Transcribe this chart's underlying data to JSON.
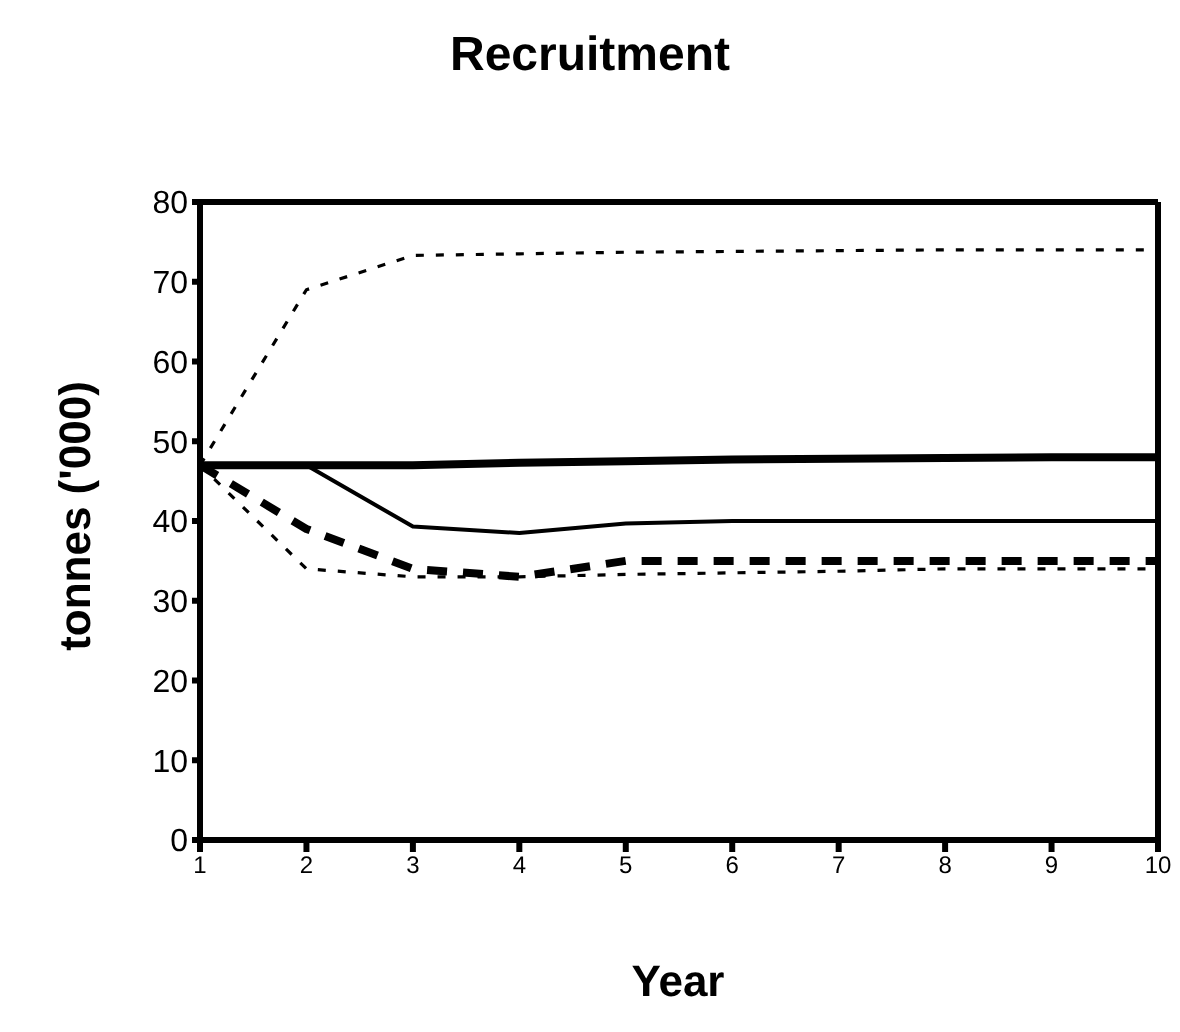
{
  "chart_data": {
    "type": "line",
    "title": "Recruitment",
    "xlabel": "Year",
    "ylabel": "tonnes ('000)",
    "x": [
      1,
      2,
      3,
      4,
      5,
      6,
      7,
      8,
      9,
      10
    ],
    "xlim": [
      1,
      10
    ],
    "xticks": [
      1,
      2,
      3,
      4,
      5,
      6,
      7,
      8,
      9,
      10
    ],
    "ylim": [
      0,
      80
    ],
    "yticks": [
      0,
      10,
      20,
      30,
      40,
      50,
      60,
      70,
      80
    ],
    "marker": "none",
    "series": [
      {
        "color": "#000000",
        "line_style": "solid",
        "values": [
          47,
          47,
          47,
          47.3,
          47.5,
          47.7,
          47.8,
          47.9,
          48,
          48
        ]
      },
      {
        "color": "#000000",
        "line_style": "solid",
        "values": [
          47,
          47,
          39.3,
          38.5,
          39.7,
          40,
          40,
          40,
          40,
          40
        ]
      },
      {
        "color": "#000000",
        "line_style": "dotted",
        "values": [
          47,
          69,
          73.3,
          73.5,
          73.7,
          73.8,
          73.9,
          74,
          74,
          74
        ]
      },
      {
        "color": "#000000",
        "line_style": "dashed",
        "values": [
          47,
          39,
          34,
          33,
          35,
          35,
          35,
          35,
          35,
          35
        ]
      },
      {
        "color": "#000000",
        "line_style": "dotted",
        "values": [
          47,
          34,
          33,
          33,
          33.3,
          33.5,
          33.7,
          34,
          34,
          34
        ]
      }
    ]
  }
}
